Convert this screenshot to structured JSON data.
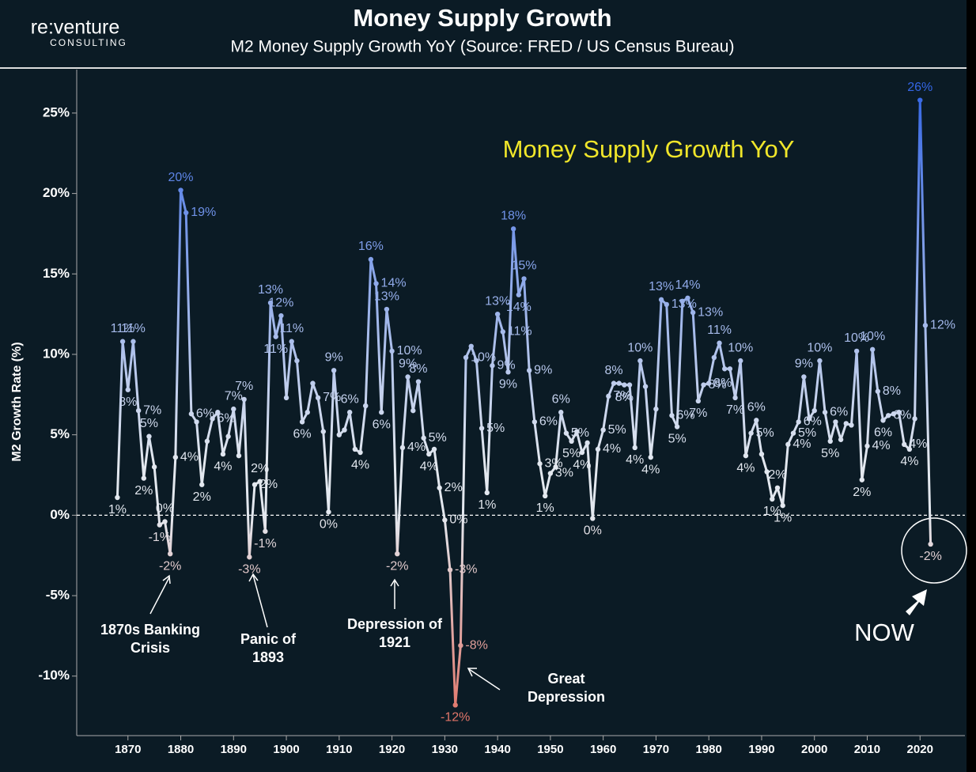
{
  "logo": {
    "name": "re:venture",
    "tagline": "CONSULTING"
  },
  "chart_data": {
    "type": "line",
    "title": "Money Supply Growth",
    "subtitle": "M2 Money Supply Growth YoY  (Source: FRED / US Census Bureau)",
    "inner_title": "Money Supply Growth YoY",
    "y_label": "M2 Growth Rate (%)",
    "x": [
      1868,
      1869,
      1870,
      1871,
      1872,
      1873,
      1874,
      1875,
      1876,
      1877,
      1878,
      1879,
      1880,
      1881,
      1882,
      1883,
      1884,
      1885,
      1886,
      1887,
      1888,
      1889,
      1890,
      1891,
      1892,
      1893,
      1894,
      1895,
      1896,
      1897,
      1898,
      1899,
      1900,
      1901,
      1902,
      1903,
      1904,
      1905,
      1906,
      1907,
      1908,
      1909,
      1910,
      1911,
      1912,
      1913,
      1914,
      1915,
      1916,
      1917,
      1918,
      1919,
      1920,
      1921,
      1922,
      1923,
      1924,
      1925,
      1926,
      1927,
      1928,
      1929,
      1930,
      1931,
      1932,
      1933,
      1934,
      1935,
      1936,
      1937,
      1938,
      1939,
      1940,
      1941,
      1942,
      1943,
      1944,
      1945,
      1946,
      1947,
      1948,
      1949,
      1950,
      1951,
      1952,
      1953,
      1954,
      1955,
      1956,
      1957,
      1958,
      1959,
      1960,
      1961,
      1962,
      1963,
      1964,
      1965,
      1966,
      1967,
      1968,
      1969,
      1970,
      1971,
      1972,
      1973,
      1974,
      1975,
      1976,
      1977,
      1978,
      1979,
      1980,
      1981,
      1982,
      1983,
      1984,
      1985,
      1986,
      1987,
      1988,
      1989,
      1990,
      1991,
      1992,
      1993,
      1994,
      1995,
      1996,
      1997,
      1998,
      1999,
      2000,
      2001,
      2002,
      2003,
      2004,
      2005,
      2006,
      2007,
      2008,
      2009,
      2010,
      2011,
      2012,
      2013,
      2014,
      2015,
      2016,
      2017,
      2018,
      2019,
      2020,
      2021,
      2022
    ],
    "values": [
      1.1,
      10.8,
      7.8,
      10.8,
      6.5,
      2.3,
      4.9,
      3.0,
      -0.6,
      -0.4,
      -2.4,
      3.6,
      20.2,
      18.8,
      6.3,
      5.8,
      1.9,
      4.6,
      6.0,
      6.4,
      3.8,
      4.9,
      6.6,
      3.7,
      7.2,
      -2.6,
      1.9,
      2.1,
      -1.0,
      13.2,
      11.1,
      12.4,
      7.3,
      10.8,
      9.6,
      5.8,
      6.4,
      8.2,
      7.3,
      5.2,
      0.2,
      9.0,
      5.0,
      5.3,
      6.4,
      4.1,
      3.9,
      6.8,
      15.9,
      14.4,
      6.4,
      12.8,
      10.2,
      -2.4,
      4.2,
      8.6,
      6.5,
      8.3,
      4.8,
      3.8,
      4.1,
      1.7,
      -0.3,
      -3.4,
      -11.8,
      -8.1,
      9.8,
      10.5,
      9.6,
      5.4,
      1.4,
      9.3,
      12.5,
      11.4,
      8.9,
      17.8,
      13.7,
      14.7,
      9.0,
      5.8,
      3.2,
      1.2,
      2.6,
      3.0,
      6.4,
      5.1,
      4.6,
      5.2,
      3.9,
      4.5,
      -0.2,
      4.1,
      5.3,
      7.4,
      8.2,
      8.2,
      8.1,
      8.1,
      4.2,
      9.6,
      8.0,
      3.6,
      6.6,
      13.4,
      13.1,
      6.2,
      5.5,
      13.3,
      13.5,
      12.6,
      7.1,
      8.1,
      8.2,
      9.8,
      10.7,
      9.1,
      9.1,
      7.3,
      9.6,
      3.7,
      5.1,
      5.9,
      3.8,
      2.7,
      1.0,
      1.7,
      0.6,
      4.4,
      5.1,
      5.8,
      8.6,
      6.0,
      6.5,
      9.6,
      6.4,
      4.6,
      5.8,
      4.7,
      5.7,
      5.6,
      10.2,
      2.2,
      4.3,
      10.3,
      7.7,
      5.9,
      6.2,
      6.3,
      6.4,
      4.4,
      4.1,
      6.0,
      25.8,
      11.8,
      -1.8
    ],
    "value_labels": [
      "1%",
      "11%",
      "8%",
      "11%",
      "7%",
      "2%",
      "5%",
      null,
      "-1%",
      "0%",
      "-2%",
      "4%",
      "20%",
      "19%",
      "6%",
      null,
      "2%",
      null,
      "6%",
      null,
      "4%",
      null,
      "7%",
      null,
      "7%",
      "-3%",
      "2%",
      "2%",
      "-1%",
      "13%",
      "11%",
      "12%",
      null,
      "11%",
      null,
      "6%",
      null,
      null,
      "7%",
      null,
      "0%",
      "9%",
      null,
      null,
      "6%",
      null,
      "4%",
      null,
      "16%",
      "14%",
      "6%",
      "13%",
      "10%",
      "-2%",
      "4%",
      "9%",
      null,
      "8%",
      "5%",
      "4%",
      null,
      "2%",
      "0%",
      "-3%",
      "-12%",
      "-8%",
      "10%",
      null,
      null,
      "5%",
      "1%",
      "9%",
      "13%",
      "11%",
      "9%",
      "18%",
      "14%",
      "15%",
      "9%",
      "6%",
      "3%",
      "1%",
      "3%",
      null,
      "6%",
      "5%",
      "5%",
      null,
      "4%",
      null,
      "0%",
      "4%",
      "5%",
      "7%",
      "8%",
      null,
      "8%",
      null,
      "4%",
      "10%",
      null,
      "4%",
      null,
      "13%",
      "13%",
      "6%",
      "5%",
      null,
      "14%",
      "13%",
      "7%",
      "8%",
      "8%",
      null,
      "11%",
      null,
      null,
      "7%",
      "10%",
      "4%",
      "5%",
      "6%",
      null,
      null,
      "1%",
      "2%",
      "1%",
      "4%",
      "5%",
      "6%",
      "9%",
      null,
      null,
      "10%",
      "6%",
      "5%",
      null,
      null,
      null,
      null,
      "10%",
      "2%",
      "4%",
      "10%",
      "8%",
      "6%",
      "6%",
      null,
      null,
      "4%",
      "4%",
      null,
      "26%",
      "12%",
      "-2%"
    ],
    "line_colors": [
      "#2b5fe3",
      "#e3e8ef",
      "#e06a5c"
    ],
    "xlim": [
      1860.3,
      2028.5
    ],
    "ylim": [
      -13.7,
      27.7
    ],
    "xticks": [
      1870,
      1880,
      1890,
      1900,
      1910,
      1920,
      1930,
      1940,
      1950,
      1960,
      1970,
      1980,
      1990,
      2000,
      2010,
      2020
    ],
    "yticks": [
      {
        "value": -10,
        "label": "-10%"
      },
      {
        "value": -5,
        "label": "-5%"
      },
      {
        "value": 0,
        "label": "0%"
      },
      {
        "value": 5,
        "label": "5%"
      },
      {
        "value": 10,
        "label": "10%"
      },
      {
        "value": 15,
        "label": "15%"
      },
      {
        "value": 20,
        "label": "20%"
      },
      {
        "value": 25,
        "label": "25%"
      }
    ],
    "annotations": [
      {
        "text": [
          "1870s Banking",
          "Crisis"
        ]
      },
      {
        "text": [
          "Panic of",
          "1893"
        ]
      },
      {
        "text": [
          "Depression of",
          "1921"
        ]
      },
      {
        "text": [
          "Great",
          "Depression"
        ]
      },
      {
        "text": [
          "NOW"
        ]
      }
    ]
  }
}
